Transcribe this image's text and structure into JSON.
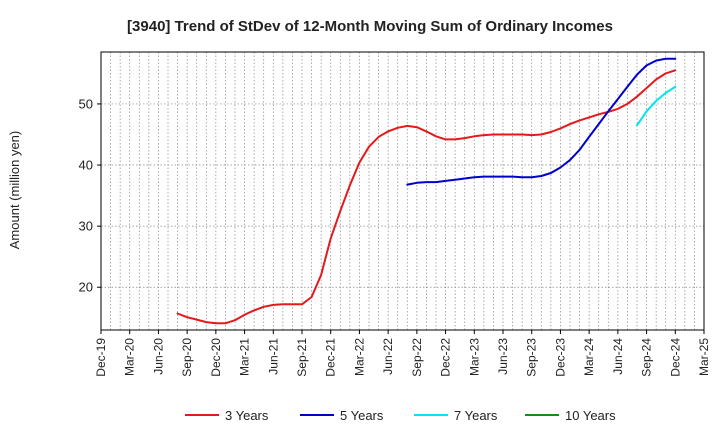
{
  "chart_data": {
    "type": "line",
    "title": "[3940]  Trend of StDev of 12-Month Moving Sum of Ordinary Incomes",
    "ylabel": "Amount (million yen)",
    "xlabel": "",
    "x_ticks": [
      "Dec-19",
      "Mar-20",
      "Jun-20",
      "Sep-20",
      "Dec-20",
      "Mar-21",
      "Jun-21",
      "Sep-21",
      "Dec-21",
      "Mar-22",
      "Jun-22",
      "Sep-22",
      "Dec-22",
      "Mar-23",
      "Jun-23",
      "Sep-23",
      "Dec-23",
      "Mar-24",
      "Jun-24",
      "Sep-24",
      "Dec-24",
      "Mar-25"
    ],
    "y_ticks": [
      20,
      30,
      40,
      50
    ],
    "ylim": [
      13,
      58.5
    ],
    "xlim": [
      "2019-12",
      "2025-03"
    ],
    "grid": true,
    "legend_position": "bottom",
    "series": [
      {
        "name": "3 Years",
        "color": "#e31a1c",
        "points": [
          [
            "2020-08",
            15.7
          ],
          [
            "2020-09",
            15.1
          ],
          [
            "2020-10",
            14.7
          ],
          [
            "2020-11",
            14.3
          ],
          [
            "2020-12",
            14.1
          ],
          [
            "2021-01",
            14.1
          ],
          [
            "2021-02",
            14.6
          ],
          [
            "2021-03",
            15.5
          ],
          [
            "2021-04",
            16.2
          ],
          [
            "2021-05",
            16.8
          ],
          [
            "2021-06",
            17.1
          ],
          [
            "2021-07",
            17.2
          ],
          [
            "2021-08",
            17.2
          ],
          [
            "2021-09",
            17.2
          ],
          [
            "2021-10",
            18.4
          ],
          [
            "2021-11",
            22.0
          ],
          [
            "2021-12",
            28.0
          ],
          [
            "2022-01",
            32.5
          ],
          [
            "2022-02",
            36.7
          ],
          [
            "2022-03",
            40.4
          ],
          [
            "2022-04",
            43.0
          ],
          [
            "2022-05",
            44.6
          ],
          [
            "2022-06",
            45.5
          ],
          [
            "2022-07",
            46.1
          ],
          [
            "2022-08",
            46.4
          ],
          [
            "2022-09",
            46.2
          ],
          [
            "2022-10",
            45.5
          ],
          [
            "2022-11",
            44.7
          ],
          [
            "2022-12",
            44.2
          ],
          [
            "2023-01",
            44.2
          ],
          [
            "2023-02",
            44.4
          ],
          [
            "2023-03",
            44.7
          ],
          [
            "2023-04",
            44.9
          ],
          [
            "2023-05",
            45.0
          ],
          [
            "2023-06",
            45.0
          ],
          [
            "2023-07",
            45.0
          ],
          [
            "2023-08",
            45.0
          ],
          [
            "2023-09",
            44.9
          ],
          [
            "2023-10",
            45.0
          ],
          [
            "2023-11",
            45.4
          ],
          [
            "2023-12",
            46.0
          ],
          [
            "2024-01",
            46.7
          ],
          [
            "2024-02",
            47.3
          ],
          [
            "2024-03",
            47.8
          ],
          [
            "2024-04",
            48.3
          ],
          [
            "2024-05",
            48.7
          ],
          [
            "2024-06",
            49.2
          ],
          [
            "2024-07",
            50.0
          ],
          [
            "2024-08",
            51.2
          ],
          [
            "2024-09",
            52.6
          ],
          [
            "2024-10",
            54.0
          ],
          [
            "2024-11",
            55.0
          ],
          [
            "2024-12",
            55.5
          ]
        ]
      },
      {
        "name": "5 Years",
        "color": "#0000cc",
        "points": [
          [
            "2022-08",
            36.8
          ],
          [
            "2022-09",
            37.1
          ],
          [
            "2022-10",
            37.2
          ],
          [
            "2022-11",
            37.2
          ],
          [
            "2022-12",
            37.4
          ],
          [
            "2023-01",
            37.6
          ],
          [
            "2023-02",
            37.8
          ],
          [
            "2023-03",
            38.0
          ],
          [
            "2023-04",
            38.1
          ],
          [
            "2023-05",
            38.1
          ],
          [
            "2023-06",
            38.1
          ],
          [
            "2023-07",
            38.1
          ],
          [
            "2023-08",
            38.0
          ],
          [
            "2023-09",
            38.0
          ],
          [
            "2023-10",
            38.2
          ],
          [
            "2023-11",
            38.7
          ],
          [
            "2023-12",
            39.6
          ],
          [
            "2024-01",
            40.8
          ],
          [
            "2024-02",
            42.5
          ],
          [
            "2024-03",
            44.6
          ],
          [
            "2024-04",
            46.7
          ],
          [
            "2024-05",
            48.8
          ],
          [
            "2024-06",
            50.8
          ],
          [
            "2024-07",
            52.8
          ],
          [
            "2024-08",
            54.8
          ],
          [
            "2024-09",
            56.3
          ],
          [
            "2024-10",
            57.1
          ],
          [
            "2024-11",
            57.4
          ],
          [
            "2024-12",
            57.4
          ]
        ]
      },
      {
        "name": "7 Years",
        "color": "#00e5ee",
        "points": [
          [
            "2024-08",
            46.5
          ],
          [
            "2024-09",
            48.8
          ],
          [
            "2024-10",
            50.5
          ],
          [
            "2024-11",
            51.8
          ],
          [
            "2024-12",
            52.8
          ]
        ]
      },
      {
        "name": "10 Years",
        "color": "#1a8a1a",
        "points": []
      }
    ]
  }
}
